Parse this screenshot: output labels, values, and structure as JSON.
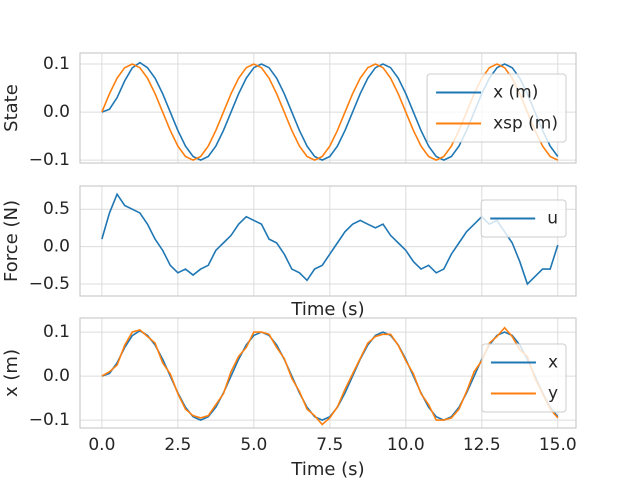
{
  "chart_data": [
    {
      "type": "line",
      "ylabel": "State",
      "x": [
        0,
        0.25,
        0.5,
        0.75,
        1,
        1.25,
        1.5,
        1.75,
        2,
        2.25,
        2.5,
        2.75,
        3,
        3.25,
        3.5,
        3.75,
        4,
        4.25,
        4.5,
        4.75,
        5,
        5.25,
        5.5,
        5.75,
        6,
        6.25,
        6.5,
        6.75,
        7,
        7.25,
        7.5,
        7.75,
        8,
        8.25,
        8.5,
        8.75,
        9,
        9.25,
        9.5,
        9.75,
        10,
        10.25,
        10.5,
        10.75,
        11,
        11.25,
        11.5,
        11.75,
        12,
        12.25,
        12.5,
        12.75,
        13,
        13.25,
        13.5,
        13.75,
        14,
        14.25,
        14.5,
        14.75,
        15
      ],
      "series": [
        {
          "name": "x (m)",
          "color": "#1f77b4",
          "values": [
            0,
            0.006,
            0.03,
            0.065,
            0.092,
            0.103,
            0.0924,
            0.0707,
            0.0383,
            0,
            -0.0383,
            -0.0707,
            -0.0924,
            -0.1,
            -0.0924,
            -0.0707,
            -0.0383,
            0,
            0.0383,
            0.0707,
            0.0924,
            0.1,
            0.0924,
            0.0707,
            0.0383,
            0,
            -0.0383,
            -0.0707,
            -0.0924,
            -0.1,
            -0.0924,
            -0.0707,
            -0.0383,
            0,
            0.0383,
            0.0707,
            0.0924,
            0.1,
            0.0924,
            0.0707,
            0.0383,
            0,
            -0.0383,
            -0.0707,
            -0.0924,
            -0.1,
            -0.0924,
            -0.0707,
            -0.0383,
            0,
            0.0383,
            0.0707,
            0.0924,
            0.1,
            0.0924,
            0.0707,
            0.0383,
            0,
            -0.0383,
            -0.0707,
            -0.0924
          ]
        },
        {
          "name": "xsp (m)",
          "color": "#ff7f0e",
          "values": [
            0,
            0.0383,
            0.0707,
            0.0924,
            0.1,
            0.0924,
            0.0707,
            0.0383,
            0,
            -0.0383,
            -0.0707,
            -0.0924,
            -0.1,
            -0.0924,
            -0.0707,
            -0.0383,
            0,
            0.0383,
            0.0707,
            0.0924,
            0.1,
            0.0924,
            0.0707,
            0.0383,
            0,
            -0.0383,
            -0.0707,
            -0.0924,
            -0.1,
            -0.0924,
            -0.0707,
            -0.0383,
            0,
            0.0383,
            0.0707,
            0.0924,
            0.1,
            0.0924,
            0.0707,
            0.0383,
            0,
            -0.0383,
            -0.0707,
            -0.0924,
            -0.1,
            -0.0924,
            -0.0707,
            -0.0383,
            0,
            0.0383,
            0.0707,
            0.0924,
            0.1,
            0.0924,
            0.0707,
            0.0383,
            0,
            -0.0383,
            -0.0707,
            -0.0924,
            -0.1
          ]
        }
      ],
      "xlim": [
        -0.72,
        15.6
      ],
      "xticks": [
        0,
        2.5,
        5,
        7.5,
        10,
        12.5,
        15
      ],
      "ylim": [
        -0.106,
        0.123
      ],
      "yticks": [
        {
          "value": -0.1,
          "label": "−0.1"
        },
        {
          "value": 0,
          "label": "0.0"
        },
        0.1
      ],
      "grid": true,
      "legend": "center right"
    },
    {
      "type": "line",
      "ylabel": "Force (N)",
      "xlabel": "Time (s)",
      "x": [
        0,
        0.25,
        0.5,
        0.75,
        1,
        1.25,
        1.5,
        1.75,
        2,
        2.25,
        2.5,
        2.75,
        3,
        3.25,
        3.5,
        3.75,
        4,
        4.25,
        4.5,
        4.75,
        5,
        5.25,
        5.5,
        5.75,
        6,
        6.25,
        6.5,
        6.75,
        7,
        7.25,
        7.5,
        7.75,
        8,
        8.25,
        8.5,
        8.75,
        9,
        9.25,
        9.5,
        9.75,
        10,
        10.25,
        10.5,
        10.75,
        11,
        11.25,
        11.5,
        11.75,
        12,
        12.25,
        12.5,
        12.75,
        13,
        13.25,
        13.5,
        13.75,
        14,
        14.25,
        14.5,
        14.75,
        15
      ],
      "series": [
        {
          "name": "u",
          "color": "#1f77b4",
          "values": [
            0.1,
            0.45,
            0.7,
            0.55,
            0.5,
            0.45,
            0.3,
            0.1,
            -0.05,
            -0.25,
            -0.35,
            -0.3,
            -0.38,
            -0.3,
            -0.25,
            -0.05,
            0.05,
            0.15,
            0.3,
            0.4,
            0.35,
            0.3,
            0.1,
            0.05,
            -0.1,
            -0.3,
            -0.35,
            -0.45,
            -0.3,
            -0.25,
            -0.1,
            0.05,
            0.2,
            0.3,
            0.35,
            0.3,
            0.25,
            0.3,
            0.15,
            0.05,
            -0.05,
            -0.2,
            -0.3,
            -0.25,
            -0.35,
            -0.3,
            -0.1,
            0.05,
            0.2,
            0.3,
            0.4,
            0.3,
            0.35,
            0.2,
            0.05,
            -0.2,
            -0.5,
            -0.4,
            -0.3,
            -0.3,
            0.02
          ]
        }
      ],
      "xlim": [
        -0.72,
        15.6
      ],
      "xticks": [
        0,
        2.5,
        5,
        7.5,
        10,
        12.5,
        15
      ],
      "ylim": [
        -0.66,
        0.81
      ],
      "yticks": [
        {
          "value": -0.5,
          "label": "−0.5"
        },
        {
          "value": 0,
          "label": "0.0"
        },
        0.5
      ],
      "grid": true,
      "legend": "upper right"
    },
    {
      "type": "line",
      "ylabel": "x (m)",
      "xlabel": "Time (s)",
      "x": [
        0,
        0.25,
        0.5,
        0.75,
        1,
        1.25,
        1.5,
        1.75,
        2,
        2.25,
        2.5,
        2.75,
        3,
        3.25,
        3.5,
        3.75,
        4,
        4.25,
        4.5,
        4.75,
        5,
        5.25,
        5.5,
        5.75,
        6,
        6.25,
        6.5,
        6.75,
        7,
        7.25,
        7.5,
        7.75,
        8,
        8.25,
        8.5,
        8.75,
        9,
        9.25,
        9.5,
        9.75,
        10,
        10.25,
        10.5,
        10.75,
        11,
        11.25,
        11.5,
        11.75,
        12,
        12.25,
        12.5,
        12.75,
        13,
        13.25,
        13.5,
        13.75,
        14,
        14.25,
        14.5,
        14.75,
        15
      ],
      "series": [
        {
          "name": "x",
          "color": "#1f77b4",
          "values": [
            0,
            0.006,
            0.03,
            0.065,
            0.092,
            0.103,
            0.0924,
            0.0707,
            0.0383,
            0,
            -0.0383,
            -0.0707,
            -0.0924,
            -0.1,
            -0.0924,
            -0.0707,
            -0.0383,
            0,
            0.0383,
            0.0707,
            0.0924,
            0.1,
            0.0924,
            0.0707,
            0.0383,
            0,
            -0.0383,
            -0.0707,
            -0.0924,
            -0.1,
            -0.0924,
            -0.0707,
            -0.0383,
            0,
            0.0383,
            0.0707,
            0.0924,
            0.1,
            0.0924,
            0.0707,
            0.0383,
            0,
            -0.0383,
            -0.0707,
            -0.0924,
            -0.1,
            -0.0924,
            -0.0707,
            -0.0383,
            0,
            0.0383,
            0.0707,
            0.0924,
            0.1,
            0.0924,
            0.0707,
            0.0383,
            0,
            -0.0383,
            -0.0707,
            -0.0924
          ]
        },
        {
          "name": "y",
          "color": "#ff7f0e",
          "values": [
            0,
            0.01,
            0.025,
            0.07,
            0.1,
            0.105,
            0.09,
            0.075,
            0.03,
            0.005,
            -0.04,
            -0.075,
            -0.09,
            -0.095,
            -0.09,
            -0.065,
            -0.04,
            0.01,
            0.045,
            0.065,
            0.1,
            0.1,
            0.095,
            0.065,
            0.04,
            -0.005,
            -0.035,
            -0.075,
            -0.09,
            -0.11,
            -0.095,
            -0.07,
            -0.03,
            0.005,
            0.04,
            0.075,
            0.09,
            0.095,
            0.095,
            0.07,
            0.035,
            0.005,
            -0.04,
            -0.065,
            -0.1,
            -0.1,
            -0.095,
            -0.075,
            -0.035,
            0.01,
            0.035,
            0.075,
            0.09,
            0.11,
            0.09,
            0.06,
            0.045,
            -0.005,
            -0.04,
            -0.075,
            -0.095
          ]
        }
      ],
      "xlim": [
        -0.72,
        15.6
      ],
      "xticks": [
        {
          "value": 0,
          "label": "0.0"
        },
        {
          "value": 2.5,
          "label": "2.5"
        },
        {
          "value": 5,
          "label": "5.0"
        },
        {
          "value": 7.5,
          "label": "7.5"
        },
        {
          "value": 10,
          "label": "10.0"
        },
        {
          "value": 12.5,
          "label": "12.5"
        },
        {
          "value": 15,
          "label": "15.0"
        }
      ],
      "ylim": [
        -0.118,
        0.132
      ],
      "yticks": [
        {
          "value": -0.1,
          "label": "−0.1"
        },
        {
          "value": 0,
          "label": "0.0"
        },
        0.1
      ],
      "grid": true,
      "legend": "lower right"
    }
  ]
}
